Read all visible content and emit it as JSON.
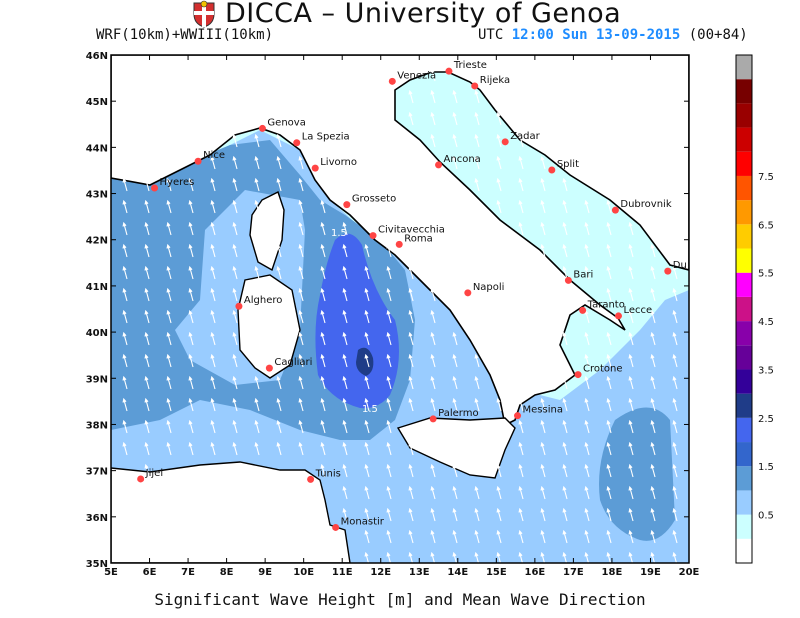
{
  "header": {
    "title": "DICCA – University of Genoa",
    "model": "WRF(10km)+WWIII(10km)",
    "time_prefix": "UTC ",
    "time_value": "12:00 Sun 13-09-2015",
    "time_suffix": " (00+84)"
  },
  "footer": {
    "caption": "Significant Wave Height [m] and Mean Wave Direction"
  },
  "map": {
    "lon_range": [
      5,
      20
    ],
    "lat_range": [
      35,
      46
    ],
    "lon_ticks": [
      "5E",
      "6E",
      "7E",
      "8E",
      "9E",
      "10E",
      "11E",
      "12E",
      "13E",
      "14E",
      "15E",
      "16E",
      "17E",
      "18E",
      "19E",
      "20E"
    ],
    "lat_ticks": [
      "35N",
      "36N",
      "37N",
      "38N",
      "39N",
      "40N",
      "41N",
      "42N",
      "43N",
      "44N",
      "45N",
      "46N"
    ],
    "mean_wave_direction": "north / north-northeast",
    "cities": [
      {
        "name": "Venezia",
        "lon": 12.3,
        "lat": 45.43
      },
      {
        "name": "Trieste",
        "lon": 13.77,
        "lat": 45.65
      },
      {
        "name": "Rijeka",
        "lon": 14.44,
        "lat": 45.33
      },
      {
        "name": "Genova",
        "lon": 8.93,
        "lat": 44.41
      },
      {
        "name": "La Spezia",
        "lon": 9.82,
        "lat": 44.1
      },
      {
        "name": "Nice",
        "lon": 7.26,
        "lat": 43.7
      },
      {
        "name": "Livorno",
        "lon": 10.3,
        "lat": 43.55
      },
      {
        "name": "Hyeres",
        "lon": 6.13,
        "lat": 43.12
      },
      {
        "name": "Zadar",
        "lon": 15.23,
        "lat": 44.12
      },
      {
        "name": "Ancona",
        "lon": 13.5,
        "lat": 43.62
      },
      {
        "name": "Split",
        "lon": 16.44,
        "lat": 43.51
      },
      {
        "name": "Grosseto",
        "lon": 11.12,
        "lat": 42.76
      },
      {
        "name": "Dubrovnik",
        "lon": 18.09,
        "lat": 42.64
      },
      {
        "name": "Civitavecchia",
        "lon": 11.8,
        "lat": 42.09
      },
      {
        "name": "Roma",
        "lon": 12.48,
        "lat": 41.9
      },
      {
        "name": "Du",
        "lon": 19.45,
        "lat": 41.32
      },
      {
        "name": "Bari",
        "lon": 16.87,
        "lat": 41.12
      },
      {
        "name": "Napoli",
        "lon": 14.26,
        "lat": 40.85
      },
      {
        "name": "Alghero",
        "lon": 8.32,
        "lat": 40.56
      },
      {
        "name": "Taranto",
        "lon": 17.24,
        "lat": 40.47
      },
      {
        "name": "Lecce",
        "lon": 18.17,
        "lat": 40.35
      },
      {
        "name": "Cagliari",
        "lon": 9.11,
        "lat": 39.22
      },
      {
        "name": "Crotone",
        "lon": 17.12,
        "lat": 39.08
      },
      {
        "name": "Palermo",
        "lon": 13.36,
        "lat": 38.12
      },
      {
        "name": "Messina",
        "lon": 15.55,
        "lat": 38.19
      },
      {
        "name": "Tunis",
        "lon": 10.18,
        "lat": 36.81
      },
      {
        "name": "Jijel",
        "lon": 5.77,
        "lat": 36.82
      },
      {
        "name": "Monastir",
        "lon": 10.83,
        "lat": 35.77
      }
    ],
    "contour_labels": [
      "1.5",
      "1.5"
    ]
  },
  "legend": {
    "title": "Significant Wave Height [m]",
    "labels": [
      "7.5",
      "6.5",
      "5.5",
      "4.5",
      "3.5",
      "2.5",
      "1.5",
      "0.5"
    ],
    "colors": [
      "#ffffff",
      "#ccffff",
      "#99ccff",
      "#5c9cd6",
      "#3366cc",
      "#4466ee",
      "#1f3c88",
      "#330099",
      "#660099",
      "#8800aa",
      "#cc1188",
      "#ff00ff",
      "#ffff00",
      "#ffcc00",
      "#ff9900",
      "#ff5500",
      "#ff0000",
      "#cc0000",
      "#990000",
      "#770000",
      "#aaaaaa"
    ]
  },
  "colors": {
    "land": "#ffffff",
    "sea_0_5": "#ccffff",
    "sea_0_5_1": "#99ccff",
    "sea_1_1_5": "#5c9cd6",
    "sea_1_5_2": "#4466ee",
    "sea_2_2_5": "#1f3c88",
    "city_dot": "#ff4444",
    "time_accent": "#1e8cff"
  }
}
